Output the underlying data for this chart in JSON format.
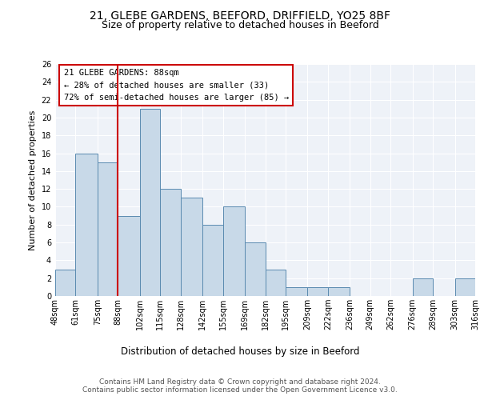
{
  "title1": "21, GLEBE GARDENS, BEEFORD, DRIFFIELD, YO25 8BF",
  "title2": "Size of property relative to detached houses in Beeford",
  "xlabel": "Distribution of detached houses by size in Beeford",
  "ylabel": "Number of detached properties",
  "footer1": "Contains HM Land Registry data © Crown copyright and database right 2024.",
  "footer2": "Contains public sector information licensed under the Open Government Licence v3.0.",
  "annotation_line1": "21 GLEBE GARDENS: 88sqm",
  "annotation_line2": "← 28% of detached houses are smaller (33)",
  "annotation_line3": "72% of semi-detached houses are larger (85) →",
  "subject_value": 88,
  "bin_edges": [
    48,
    61,
    75,
    88,
    102,
    115,
    128,
    142,
    155,
    169,
    182,
    195,
    209,
    222,
    236,
    249,
    262,
    276,
    289,
    303,
    316
  ],
  "bar_counts": [
    3,
    16,
    15,
    9,
    21,
    12,
    11,
    8,
    10,
    6,
    3,
    1,
    1,
    1,
    0,
    0,
    0,
    2,
    0,
    2
  ],
  "bar_color": "#c8d9e8",
  "bar_edge_color": "#5a8ab0",
  "vline_color": "#cc0000",
  "vline_x": 88,
  "annotation_box_color": "#cc0000",
  "ylim": [
    0,
    26
  ],
  "yticks": [
    0,
    2,
    4,
    6,
    8,
    10,
    12,
    14,
    16,
    18,
    20,
    22,
    24,
    26
  ],
  "bg_color": "#eef2f8",
  "grid_color": "#ffffff",
  "title1_fontsize": 10,
  "title2_fontsize": 9,
  "xlabel_fontsize": 8.5,
  "ylabel_fontsize": 8,
  "tick_fontsize": 7,
  "annotation_fontsize": 7.5,
  "footer_fontsize": 6.5
}
